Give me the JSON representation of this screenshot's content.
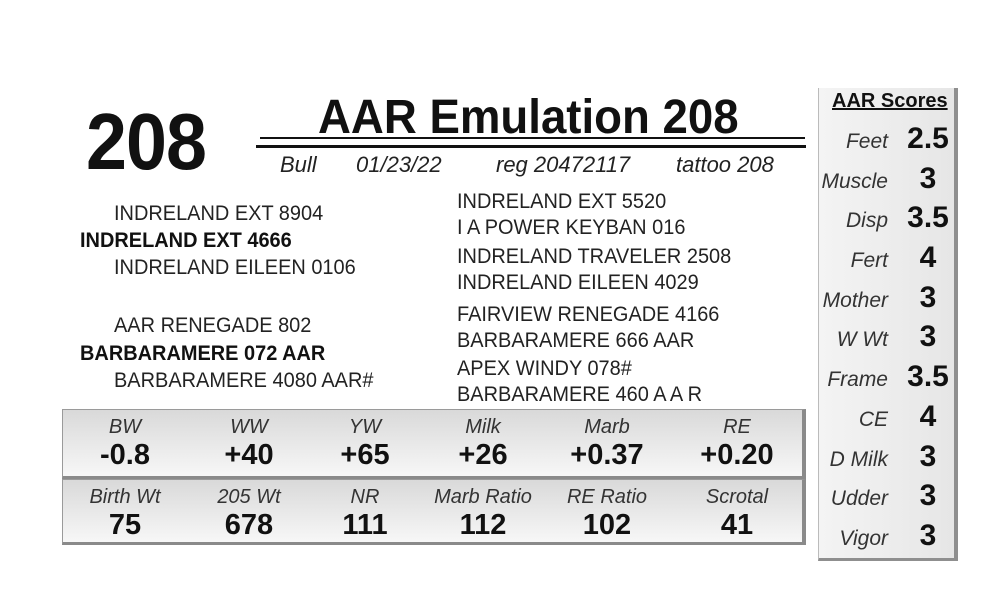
{
  "lot_number": "208",
  "animal_name": "AAR Emulation 208",
  "meta": {
    "sex": "Bull",
    "birth_date": "01/23/22",
    "registration": "reg 20472117",
    "tattoo": "tattoo 208"
  },
  "pedigree": {
    "sire_sire": "INDRELAND EXT 8904",
    "sire": "INDRELAND EXT 4666",
    "sire_dam": "INDRELAND EILEEN 0106",
    "dam_sire": "AAR RENEGADE 802",
    "dam": "BARBARAMERE 072 AAR",
    "dam_dam": "BARBARAMERE 4080 AAR#",
    "right": [
      "INDRELAND EXT 5520",
      "I A POWER KEYBAN 016",
      "INDRELAND TRAVELER 2508",
      "INDRELAND EILEEN 4029",
      "FAIRVIEW RENEGADE 4166",
      "BARBARAMERE 666 AAR",
      "APEX WINDY 078#",
      "BARBARAMERE 460 A A R"
    ]
  },
  "epds": [
    {
      "label": "BW",
      "value": "-0.8"
    },
    {
      "label": "WW",
      "value": "+40"
    },
    {
      "label": "YW",
      "value": "+65"
    },
    {
      "label": "Milk",
      "value": "+26"
    },
    {
      "label": "Marb",
      "value": "+0.37"
    },
    {
      "label": "RE",
      "value": "+0.20"
    }
  ],
  "performance": [
    {
      "label": "Birth Wt",
      "value": "75"
    },
    {
      "label": "205 Wt",
      "value": "678"
    },
    {
      "label": "NR",
      "value": "111"
    },
    {
      "label": "Marb Ratio",
      "value": "112"
    },
    {
      "label": "RE Ratio",
      "value": "102"
    },
    {
      "label": "Scrotal",
      "value": "41"
    }
  ],
  "scores": {
    "title": "AAR Scores",
    "items": [
      {
        "label": "Feet",
        "value": "2.5"
      },
      {
        "label": "Muscle",
        "value": "3"
      },
      {
        "label": "Disp",
        "value": "3.5"
      },
      {
        "label": "Fert",
        "value": "4"
      },
      {
        "label": "Mother",
        "value": "3"
      },
      {
        "label": "W Wt",
        "value": "3"
      },
      {
        "label": "Frame",
        "value": "3.5"
      },
      {
        "label": "CE",
        "value": "4"
      },
      {
        "label": "D Milk",
        "value": "3"
      },
      {
        "label": "Udder",
        "value": "3"
      },
      {
        "label": "Vigor",
        "value": "3"
      }
    ]
  }
}
